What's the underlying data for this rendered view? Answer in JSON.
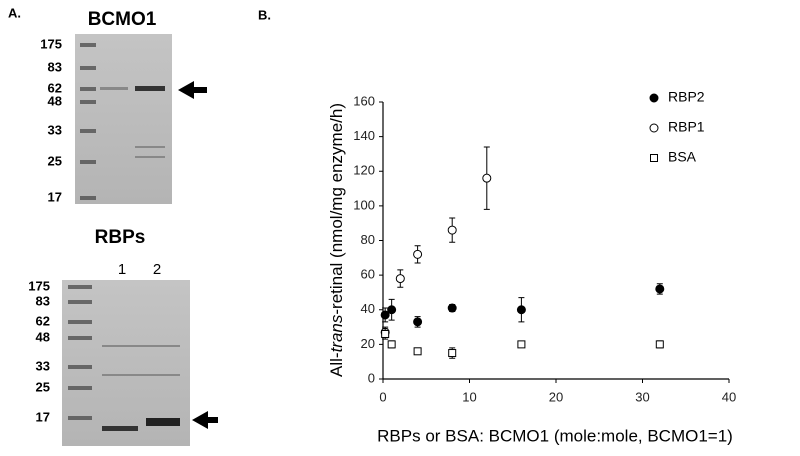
{
  "panel_a": {
    "label": "A.",
    "gel_1": {
      "title": "BCMO1",
      "markers": [
        "175",
        "83",
        "62",
        "48",
        "33",
        "25",
        "17"
      ]
    },
    "gel_2": {
      "title": "RBPs",
      "lanes": [
        "1",
        "2"
      ],
      "markers": [
        "175",
        "83",
        "62",
        "48",
        "33",
        "25",
        "17"
      ]
    }
  },
  "chart_data": {
    "type": "scatter",
    "label": "B.",
    "ylabel_parts": [
      "All-",
      "trans",
      "-retinal (nmol/mg enzyme/h)"
    ],
    "xlabel": "RBPs or BSA: BCMO1 (mole:mole, BCMO1=1)",
    "xlim": [
      0,
      40
    ],
    "xticks": [
      0,
      10,
      20,
      30,
      40
    ],
    "ylim": [
      0,
      160
    ],
    "yticks": [
      0,
      20,
      40,
      60,
      80,
      100,
      120,
      140,
      160
    ],
    "legend": "top-right",
    "series": [
      {
        "name": "RBP2",
        "color": "#000000",
        "marker": "filled-circle",
        "x": [
          0.25,
          1,
          4,
          8,
          16,
          32
        ],
        "values": [
          37,
          40,
          33,
          41,
          40,
          52
        ],
        "errors": [
          4,
          6,
          3,
          2,
          7,
          3
        ]
      },
      {
        "name": "RBP1",
        "color": "#000000",
        "marker": "open-circle",
        "x": [
          0.25,
          2,
          4,
          8,
          12
        ],
        "values": [
          27,
          58,
          72,
          86,
          116
        ],
        "errors": [
          3,
          5,
          5,
          7,
          18
        ]
      },
      {
        "name": "BSA",
        "color": "#000000",
        "marker": "open-square",
        "x": [
          0.25,
          1,
          4,
          8,
          16,
          32
        ],
        "values": [
          26,
          20,
          16,
          15,
          20,
          20
        ],
        "errors": [
          3,
          2,
          1,
          3,
          1,
          2
        ]
      }
    ]
  }
}
